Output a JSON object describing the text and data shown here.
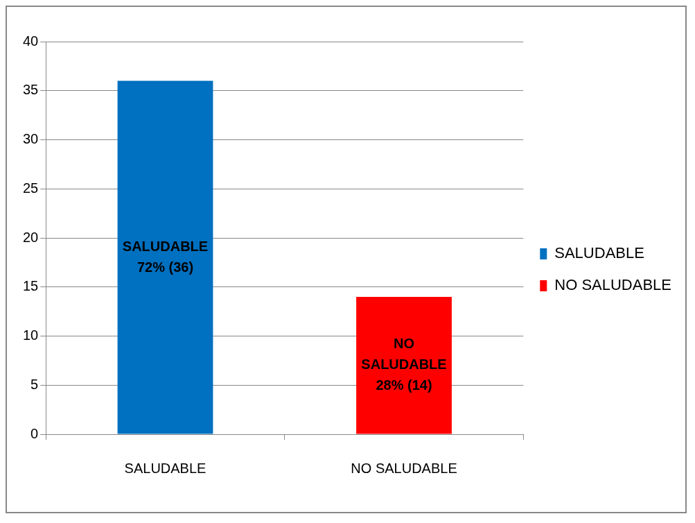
{
  "chart_data": {
    "type": "bar",
    "categories": [
      "SALUDABLE",
      "NO SALUDABLE"
    ],
    "series": [
      {
        "name": "SALUDABLE",
        "color": "#0070c0",
        "values": [
          36,
          null
        ],
        "value_labels": [
          "SALUDABLE 72% (36)",
          null
        ]
      },
      {
        "name": "NO SALUDABLE",
        "color": "#ff0000",
        "values": [
          null,
          14
        ],
        "value_labels": [
          null,
          "NO SALUDABLE 28% (14)"
        ]
      }
    ],
    "ylim": [
      0,
      40
    ],
    "yticks": [
      0,
      5,
      10,
      15,
      20,
      25,
      30,
      35,
      40
    ],
    "grid": "y",
    "legend": "right"
  }
}
